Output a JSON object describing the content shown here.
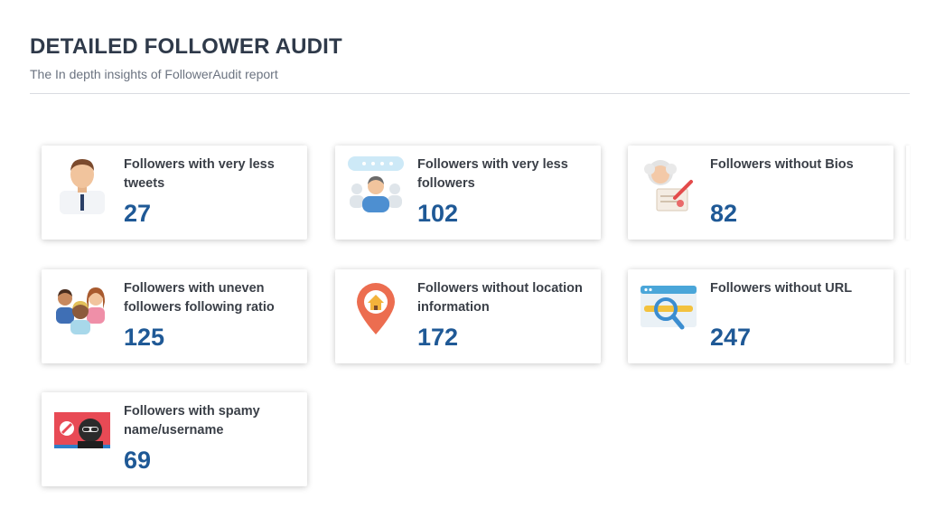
{
  "header": {
    "title": "DETAILED FOLLOWER AUDIT",
    "subtitle": "The In depth insights of FollowerAudit report"
  },
  "cards": [
    {
      "label": "Followers with very less tweets",
      "value": "27",
      "icon": "businessman-icon"
    },
    {
      "label": "Followers with very less followers",
      "value": "102",
      "icon": "lonely-user-icon"
    },
    {
      "label": "Followers without Bios",
      "value": "82",
      "icon": "writing-elder-icon"
    },
    {
      "label": "Followers with uneven followers following ratio",
      "value": "125",
      "icon": "group-people-icon"
    },
    {
      "label": "Followers without location information",
      "value": "172",
      "icon": "location-pin-icon"
    },
    {
      "label": "Followers without URL",
      "value": "247",
      "icon": "url-search-icon"
    },
    {
      "label": "Followers with spamy name/username",
      "value": "69",
      "icon": "spam-hacker-icon"
    }
  ],
  "colors": {
    "value": "#1f5996",
    "title": "#2f3a4a"
  }
}
